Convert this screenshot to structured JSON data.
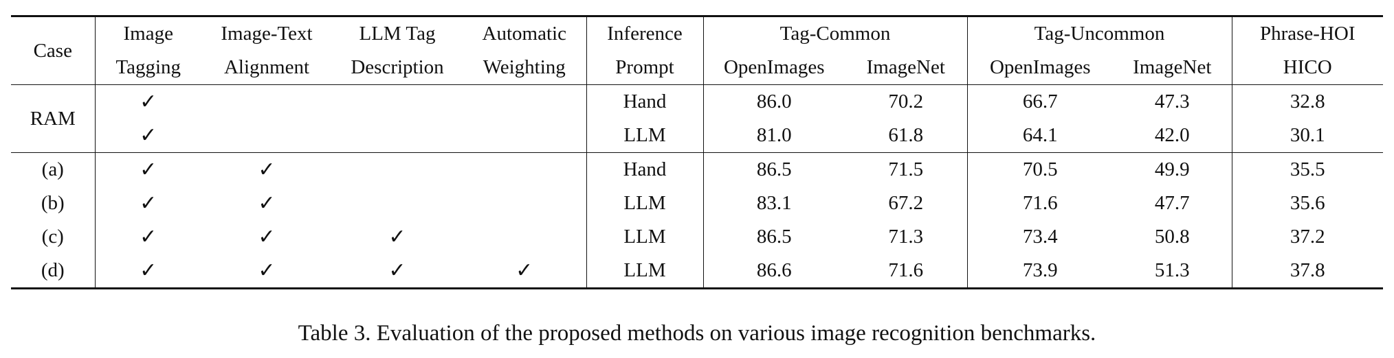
{
  "table": {
    "headers": {
      "case": "Case",
      "image_tagging": [
        "Image",
        "Tagging"
      ],
      "image_text_alignment": [
        "Image-Text",
        "Alignment"
      ],
      "llm_tag_description": [
        "LLM Tag",
        "Description"
      ],
      "automatic_weighting": [
        "Automatic",
        "Weighting"
      ],
      "inference_prompt": [
        "Inference",
        "Prompt"
      ],
      "tag_common": "Tag-Common",
      "tag_uncommon": "Tag-Uncommon",
      "phrase_hoi": "Phrase-HOI",
      "sub": {
        "common_openimages": "OpenImages",
        "common_imagenet": "ImageNet",
        "uncommon_openimages": "OpenImages",
        "uncommon_imagenet": "ImageNet",
        "hoi_hico": "HICO"
      }
    },
    "check_mark": "✓",
    "ram_group": {
      "case": "RAM",
      "rows": [
        {
          "image_tagging": "✓",
          "image_text_alignment": "",
          "llm_tag_description": "",
          "automatic_weighting": "",
          "prompt": "Hand",
          "common_openimages": "86.0",
          "common_imagenet": "70.2",
          "uncommon_openimages": "66.7",
          "uncommon_imagenet": "47.3",
          "hico": "32.8"
        },
        {
          "image_tagging": "✓",
          "image_text_alignment": "",
          "llm_tag_description": "",
          "automatic_weighting": "",
          "prompt": "LLM",
          "common_openimages": "81.0",
          "common_imagenet": "61.8",
          "uncommon_openimages": "64.1",
          "uncommon_imagenet": "42.0",
          "hico": "30.1"
        }
      ]
    },
    "ablation_rows": [
      {
        "case": "(a)",
        "image_tagging": "✓",
        "image_text_alignment": "✓",
        "llm_tag_description": "",
        "automatic_weighting": "",
        "prompt": "Hand",
        "common_openimages": "86.5",
        "common_imagenet": "71.5",
        "uncommon_openimages": "70.5",
        "uncommon_imagenet": "49.9",
        "hico": "35.5"
      },
      {
        "case": "(b)",
        "image_tagging": "✓",
        "image_text_alignment": "✓",
        "llm_tag_description": "",
        "automatic_weighting": "",
        "prompt": "LLM",
        "common_openimages": "83.1",
        "common_imagenet": "67.2",
        "uncommon_openimages": "71.6",
        "uncommon_imagenet": "47.7",
        "hico": "35.6"
      },
      {
        "case": "(c)",
        "image_tagging": "✓",
        "image_text_alignment": "✓",
        "llm_tag_description": "✓",
        "automatic_weighting": "",
        "prompt": "LLM",
        "common_openimages": "86.5",
        "common_imagenet": "71.3",
        "uncommon_openimages": "73.4",
        "uncommon_imagenet": "50.8",
        "hico": "37.2"
      },
      {
        "case": "(d)",
        "image_tagging": "✓",
        "image_text_alignment": "✓",
        "llm_tag_description": "✓",
        "automatic_weighting": "✓",
        "prompt": "LLM",
        "common_openimages": "86.6",
        "common_imagenet": "71.6",
        "uncommon_openimages": "73.9",
        "uncommon_imagenet": "51.3",
        "hico": "37.8"
      }
    ]
  },
  "caption": "Table 3. Evaluation of the proposed methods on various image recognition benchmarks."
}
